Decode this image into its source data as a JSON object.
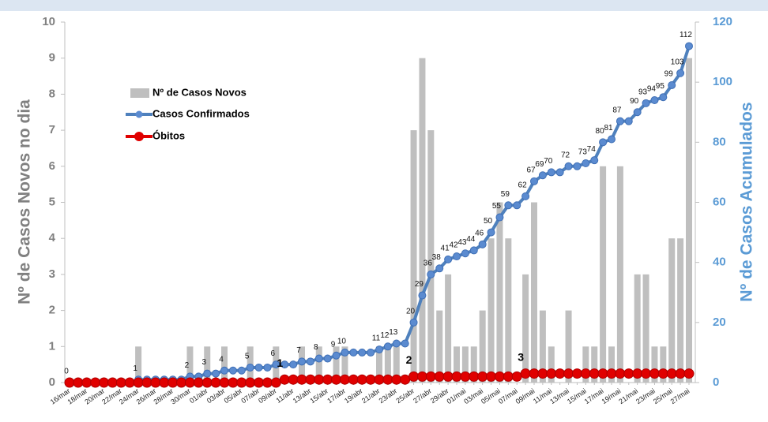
{
  "chart_data": {
    "type": "bar",
    "ylabel": "Nº de Casos Novos no dia",
    "y2label": "Nº de Casos Acumulados",
    "ylim": [
      0,
      10
    ],
    "yticks": [
      0,
      1,
      2,
      3,
      4,
      5,
      6,
      7,
      8,
      9,
      10
    ],
    "y2lim": [
      0,
      120
    ],
    "y2ticks": [
      0,
      20,
      40,
      60,
      80,
      100,
      120
    ],
    "legend": "upper left",
    "categories": [
      "16/mar",
      null,
      "18/mar",
      null,
      "20/mar",
      null,
      "22/mar",
      null,
      "24/mar",
      null,
      "26/mar",
      null,
      "28/mar",
      null,
      "30/mar",
      null,
      "01/abr",
      null,
      "03/abr",
      null,
      "05/abr",
      null,
      "07/abr",
      null,
      "09/abr",
      null,
      "11/abr",
      null,
      "13/abr",
      null,
      "15/abr",
      null,
      "17/abr",
      null,
      "19/abr",
      null,
      "21/abr",
      null,
      "23/abr",
      null,
      "25/abr",
      null,
      "27/abr",
      null,
      "29/abr",
      null,
      "01/mai",
      null,
      "03/mai",
      null,
      "05/mai",
      null,
      "07/mai",
      null,
      "09/mai",
      null,
      "11/mai",
      null,
      "13/mai",
      null,
      "15/mai",
      null,
      "17/mai",
      null,
      "19/mai",
      null,
      "21/mai",
      null,
      "23/mai",
      null,
      "25/mai",
      null,
      "27/mai"
    ],
    "series": [
      {
        "name": "Nº de Casos Novos",
        "type": "bar",
        "color": "#bfbfbf",
        "values": [
          0,
          0,
          0,
          0,
          0,
          0,
          0,
          0,
          1,
          0,
          0,
          0,
          0,
          0,
          1,
          0,
          1,
          0,
          1,
          0,
          0,
          1,
          0,
          0,
          1,
          0,
          0,
          1,
          0,
          1,
          0,
          1,
          1,
          0,
          0,
          0,
          1,
          1,
          1,
          0,
          7,
          9,
          7,
          2,
          3,
          1,
          1,
          1,
          2,
          4,
          5,
          4,
          0,
          3,
          5,
          2,
          1,
          0,
          2,
          0,
          1,
          1,
          6,
          1,
          6,
          0,
          3,
          3,
          1,
          1,
          4,
          4,
          9
        ]
      },
      {
        "name": "Casos Confirmados",
        "type": "line",
        "axis": "y2",
        "color": "#4f81bd",
        "values": [
          0,
          0,
          0,
          0,
          0,
          0,
          0,
          0,
          1,
          1,
          1,
          1,
          1,
          1,
          2,
          2,
          3,
          3,
          4,
          4,
          4,
          5,
          5,
          5,
          6,
          6,
          6,
          7,
          7,
          8,
          8,
          9,
          10,
          10,
          10,
          10,
          11,
          12,
          13,
          13,
          20,
          29,
          36,
          38,
          41,
          42,
          43,
          44,
          46,
          50,
          55,
          59,
          59,
          62,
          67,
          69,
          70,
          70,
          72,
          72,
          73,
          74,
          80,
          81,
          87,
          87,
          90,
          93,
          94,
          95,
          99,
          103,
          112
        ]
      },
      {
        "name": "Óbitos",
        "type": "line",
        "axis": "y2",
        "color": "#e00000",
        "values": [
          0,
          0,
          0,
          0,
          0,
          0,
          0,
          0,
          0,
          0,
          0,
          0,
          0,
          0,
          0,
          0,
          0,
          0,
          0,
          0,
          0,
          0,
          0,
          0,
          0,
          1,
          1,
          1,
          1,
          1,
          1,
          1,
          1,
          1,
          1,
          1,
          1,
          1,
          1,
          1,
          2,
          2,
          2,
          2,
          2,
          2,
          2,
          2,
          2,
          2,
          2,
          2,
          2,
          3,
          3,
          3,
          3,
          3,
          3,
          3,
          3,
          3,
          3,
          3,
          3,
          3,
          3,
          3,
          3,
          3,
          3,
          3,
          3
        ]
      }
    ]
  }
}
